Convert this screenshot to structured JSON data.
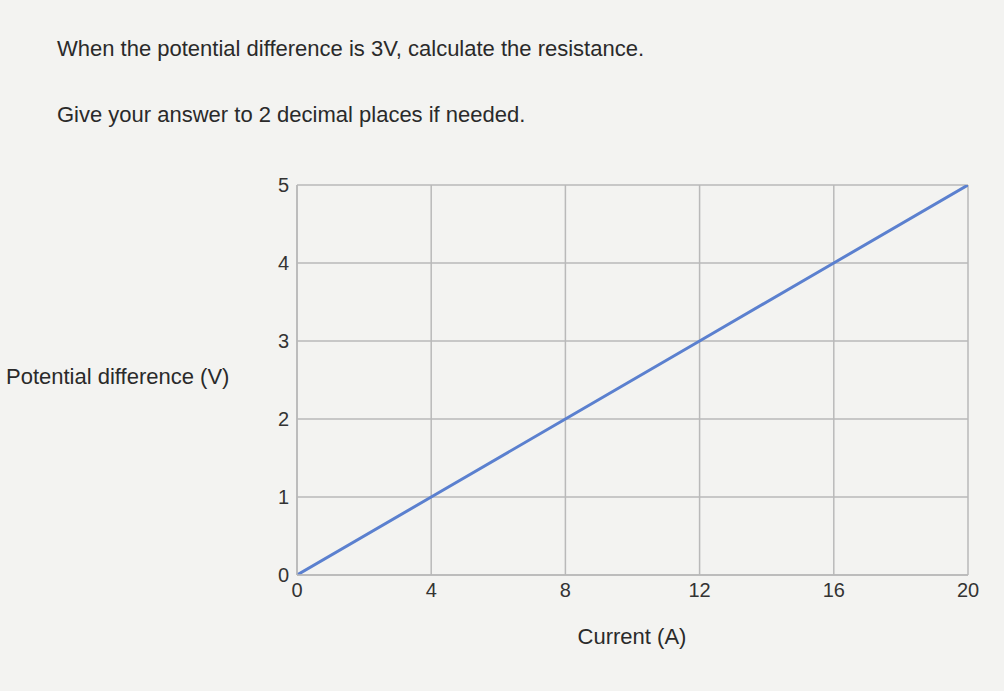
{
  "question": "When the potential difference is 3V, calculate the resistance.",
  "instruction": "Give your answer to 2 decimal places if needed.",
  "chart_data": {
    "type": "line",
    "x_label": "Current (A)",
    "y_label": "Potential difference (V)",
    "x": [
      0,
      4,
      8,
      12,
      16,
      20
    ],
    "values": [
      0,
      1,
      2,
      3,
      4,
      5
    ],
    "color": "#5b80cf",
    "xlim": [
      0,
      20
    ],
    "xticks": [
      0,
      4,
      8,
      12,
      16,
      20
    ],
    "ylim": [
      0,
      5
    ],
    "yticks": [
      0,
      1,
      2,
      3,
      4,
      5
    ],
    "grid": true
  }
}
